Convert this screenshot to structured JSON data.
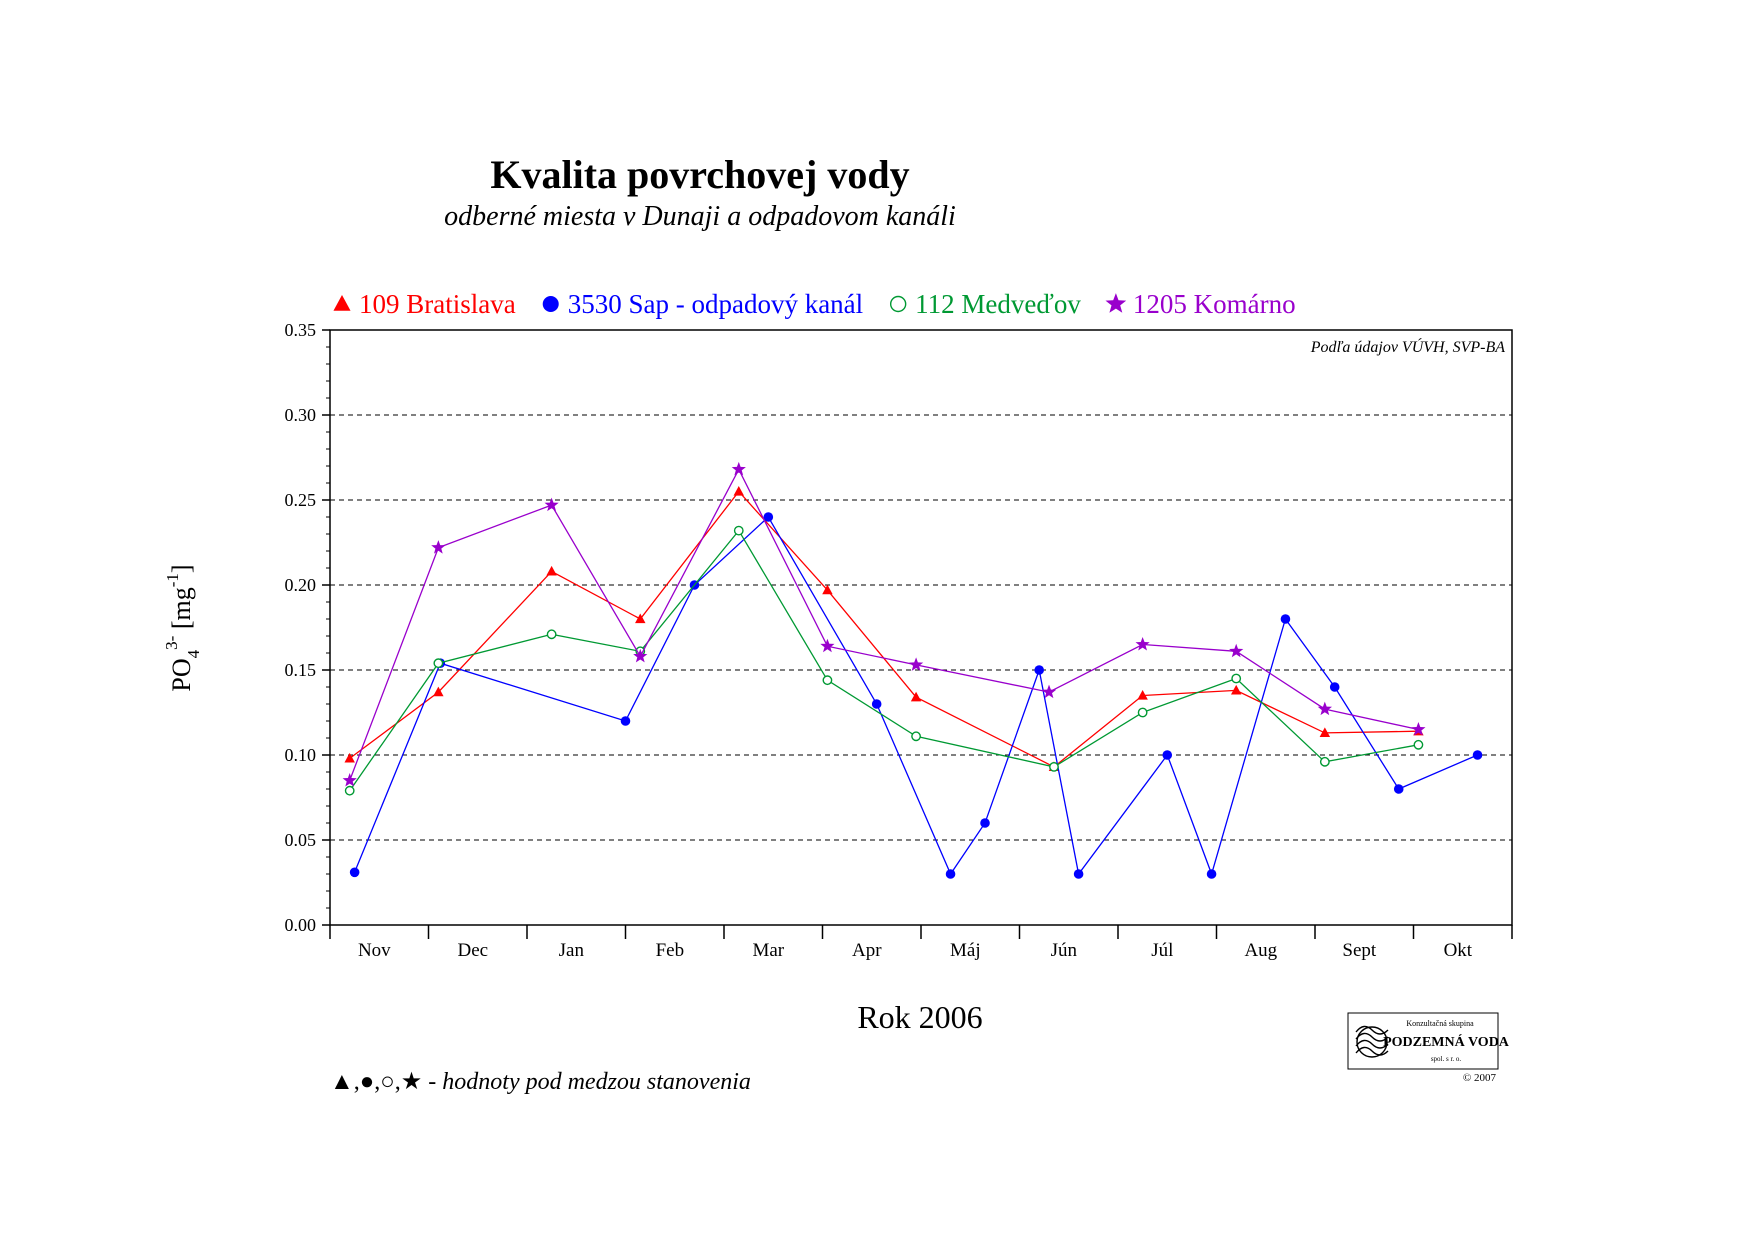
{
  "chart_data": {
    "type": "line",
    "title": "Kvalita povrchovej vody",
    "subtitle": "odberné miesta v Dunaji a odpadovom kanáli",
    "xlabel": "Rok 2006",
    "ylabel": {
      "base": "PO",
      "sub": "4",
      "sup": "3-",
      "unit_open": " [mg",
      "unit_sup": "-1",
      "unit_close": "]"
    },
    "source_note": "Podľa údajov VÚVH, SVP-BA",
    "footnote": {
      "symbols": [
        "▲",
        "●",
        "○",
        "★"
      ],
      "separators": [
        ",",
        ",",
        ","
      ],
      "text": " - hodnoty pod medzou stanovenia"
    },
    "months": [
      "Nov",
      "Dec",
      "Jan",
      "Feb",
      "Mar",
      "Apr",
      "Máj",
      "Jún",
      "Júl",
      "Aug",
      "Sept",
      "Okt"
    ],
    "x_domain": [
      0,
      12
    ],
    "ylim": [
      0,
      0.35
    ],
    "y_ticks": [
      "0.00",
      "0.05",
      "0.10",
      "0.15",
      "0.20",
      "0.25",
      "0.30",
      "0.35"
    ],
    "grid": true,
    "legend_position": "top",
    "series": [
      {
        "name": "109 Bratislava",
        "color": "#ff0000",
        "marker": "triangle",
        "points": [
          [
            0.2,
            0.098
          ],
          [
            1.1,
            0.137
          ],
          [
            2.25,
            0.208
          ],
          [
            3.15,
            0.18
          ],
          [
            4.15,
            0.255
          ],
          [
            5.05,
            0.197
          ],
          [
            5.95,
            0.134
          ],
          [
            7.35,
            0.093
          ],
          [
            8.25,
            0.135
          ],
          [
            9.2,
            0.138
          ],
          [
            10.1,
            0.113
          ],
          [
            11.05,
            0.114
          ]
        ]
      },
      {
        "name": "3530 Sap - odpadový kanál",
        "color": "#0000ff",
        "marker": "filled-circle",
        "points": [
          [
            0.25,
            0.031
          ],
          [
            1.12,
            0.154
          ],
          [
            3.0,
            0.12
          ],
          [
            3.7,
            0.2
          ],
          [
            4.45,
            0.24
          ],
          [
            5.55,
            0.13
          ],
          [
            6.3,
            0.03
          ],
          [
            6.65,
            0.06
          ],
          [
            7.2,
            0.15
          ],
          [
            7.6,
            0.03
          ],
          [
            8.5,
            0.1
          ],
          [
            8.95,
            0.03
          ],
          [
            9.7,
            0.18
          ],
          [
            10.2,
            0.14
          ],
          [
            10.85,
            0.08
          ],
          [
            11.65,
            0.1
          ]
        ]
      },
      {
        "name": "112 Medveďov",
        "color": "#009933",
        "marker": "open-circle",
        "points": [
          [
            0.2,
            0.079
          ],
          [
            1.1,
            0.154
          ],
          [
            2.25,
            0.171
          ],
          [
            3.15,
            0.161
          ],
          [
            4.15,
            0.232
          ],
          [
            5.05,
            0.144
          ],
          [
            5.95,
            0.111
          ],
          [
            7.35,
            0.093
          ],
          [
            8.25,
            0.125
          ],
          [
            9.2,
            0.145
          ],
          [
            10.1,
            0.096
          ],
          [
            11.05,
            0.106
          ]
        ]
      },
      {
        "name": "1205 Komárno",
        "color": "#9900cc",
        "marker": "star",
        "points": [
          [
            0.2,
            0.085
          ],
          [
            1.1,
            0.222
          ],
          [
            2.25,
            0.247
          ],
          [
            3.15,
            0.158
          ],
          [
            4.15,
            0.268
          ],
          [
            5.05,
            0.164
          ],
          [
            5.95,
            0.153
          ],
          [
            7.3,
            0.137
          ],
          [
            8.25,
            0.165
          ],
          [
            9.2,
            0.161
          ],
          [
            10.1,
            0.127
          ],
          [
            11.05,
            0.115
          ]
        ]
      }
    ]
  },
  "logo": {
    "line1": "Konzultačná skupina",
    "line2": "PODZEMNÁ VODA",
    "line3": "spol. s r. o.",
    "copyright": "© 2007"
  }
}
